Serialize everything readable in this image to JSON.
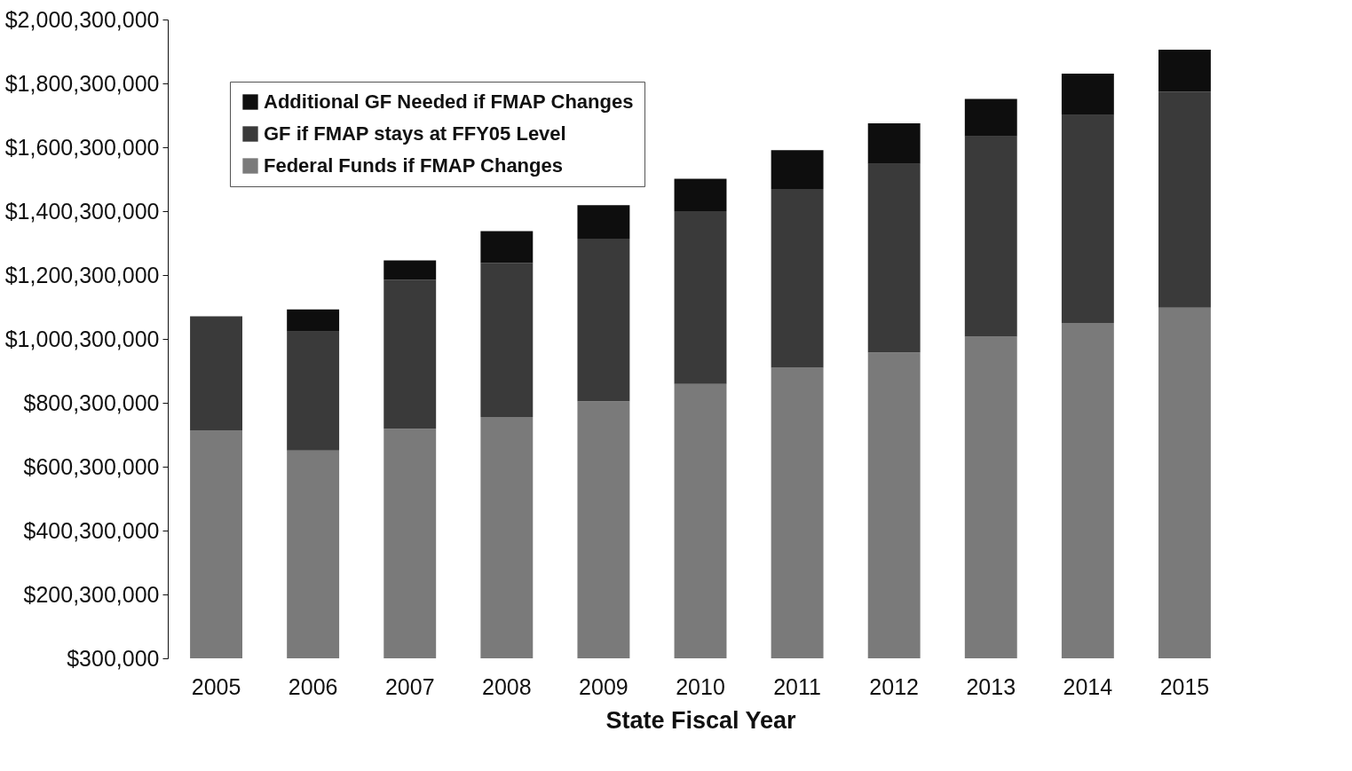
{
  "chart_data": {
    "type": "bar",
    "stacked": true,
    "xlabel": "State Fiscal Year",
    "categories": [
      "2005",
      "2006",
      "2007",
      "2008",
      "2009",
      "2010",
      "2011",
      "2012",
      "2013",
      "2014",
      "2015"
    ],
    "series": [
      {
        "name": "Federal Funds if FMAP Changes",
        "color": "#7a7a7a",
        "values": [
          713000000,
          651000000,
          719000000,
          756000000,
          805000000,
          859000000,
          910000000,
          958000000,
          1007000000,
          1050000000,
          1098000000
        ]
      },
      {
        "name": "GF if FMAP stays at FFY05 Level",
        "color": "#3a3a3a",
        "values": [
          358000000,
          372000000,
          466000000,
          482000000,
          509000000,
          541000000,
          560000000,
          590000000,
          627000000,
          651000000,
          676000000
        ]
      },
      {
        "name": "Additional GF Needed if FMAP Changes",
        "color": "#0e0e0e",
        "values": [
          null,
          70000000,
          61000000,
          100000000,
          105000000,
          102000000,
          121000000,
          127000000,
          118000000,
          130000000,
          132000000
        ]
      }
    ],
    "ylim": [
      300000,
      2000300000
    ],
    "yticks": [
      {
        "value": 300000,
        "label": "$300,000"
      },
      {
        "value": 200300000,
        "label": "$200,300,000"
      },
      {
        "value": 400300000,
        "label": "$400,300,000"
      },
      {
        "value": 600300000,
        "label": "$600,300,000"
      },
      {
        "value": 800300000,
        "label": "$800,300,000"
      },
      {
        "value": 1000300000,
        "label": "$1,000,300,000"
      },
      {
        "value": 1200300000,
        "label": "$1,200,300,000"
      },
      {
        "value": 1400300000,
        "label": "$1,400,300,000"
      },
      {
        "value": 1600300000,
        "label": "$1,600,300,000"
      },
      {
        "value": 1800300000,
        "label": "$1,800,300,000"
      },
      {
        "value": 2000300000,
        "label": "$2,000,300,000"
      }
    ],
    "grid": false,
    "legend": "top left"
  }
}
